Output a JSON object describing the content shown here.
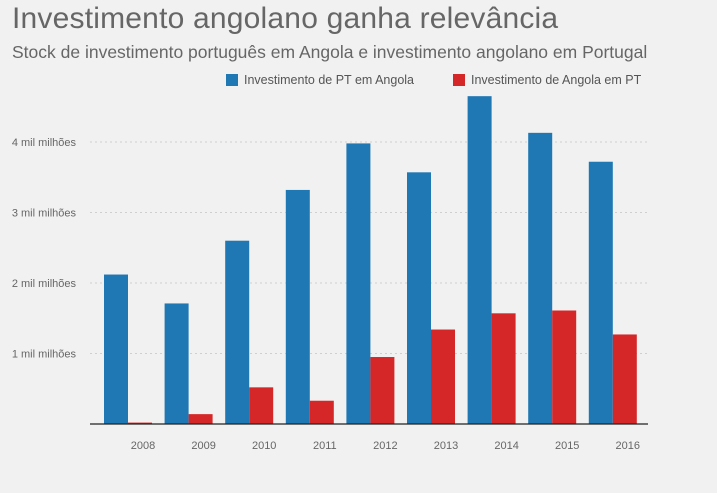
{
  "title": "Investimento angolano ganha relevância",
  "subtitle": "Stock de investimento português em Angola e investimento angolano em Portugal",
  "colors": {
    "series1": "#1f77b4",
    "series2": "#d62728",
    "grid": "#cfcfcf",
    "axis": "#222222"
  },
  "chart_data": {
    "type": "bar",
    "categories": [
      "2008",
      "2009",
      "2010",
      "2011",
      "2012",
      "2013",
      "2014",
      "2015",
      "2016"
    ],
    "series": [
      {
        "name": "Investimento de PT em Angola",
        "values": [
          2.12,
          1.71,
          2.6,
          3.32,
          3.98,
          3.57,
          4.65,
          4.13,
          3.72
        ]
      },
      {
        "name": "Investimento de Angola em PT",
        "values": [
          0.02,
          0.14,
          0.52,
          0.33,
          0.95,
          1.34,
          1.57,
          1.61,
          1.27
        ]
      }
    ],
    "y_ticks": [
      {
        "value": 1,
        "label": "1 mil milhões"
      },
      {
        "value": 2,
        "label": "2 mil milhões"
      },
      {
        "value": 3,
        "label": "3 mil milhões"
      },
      {
        "value": 4,
        "label": "4 mil milhões"
      }
    ],
    "ylim": [
      0,
      5
    ],
    "grid": true,
    "legend_position": "top"
  }
}
